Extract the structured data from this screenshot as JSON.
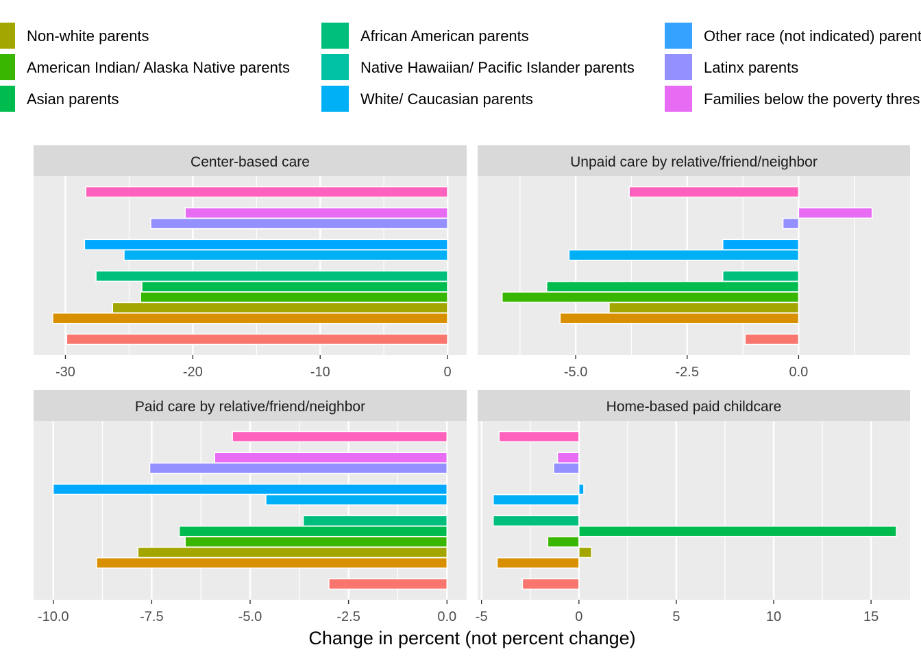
{
  "chart_data": {
    "type": "bar",
    "orientation": "horizontal",
    "xlabel": "Change in percent (not percent change)",
    "legend_position": "top",
    "grid": true,
    "series": [
      {
        "name": "Non-white parents",
        "color": "#A3A500"
      },
      {
        "name": "American Indian/ Alaska Native parents",
        "color": "#39B600"
      },
      {
        "name": "Asian parents",
        "color": "#00BB4E"
      },
      {
        "name": "African American parents",
        "color": "#00BF7D"
      },
      {
        "name": "Native Hawaiian/ Pacific Islander parents",
        "color": "#00C1A3"
      },
      {
        "name": "White/ Caucasian parents",
        "color": "#00B0F6"
      },
      {
        "name": "Other race (not indicated) parents",
        "color": "#35A2FF"
      },
      {
        "name": "Latinx parents",
        "color": "#9590FF"
      },
      {
        "name": "Families below the poverty threshold",
        "color": "#E76BF3"
      }
    ],
    "bar_colors": [
      "#F8766D",
      "#D89000",
      "#A3A500",
      "#39B600",
      "#00BB4E",
      "#00BF7D",
      "#00B0F6",
      "#00A9FF",
      "#9590FF",
      "#E76BF3",
      "#FF62BC"
    ],
    "bar_slots": [
      0,
      2,
      3,
      4,
      5,
      6,
      8,
      9,
      11,
      12,
      14
    ],
    "panels": [
      {
        "title": "Center-based care",
        "xlim": [
          -32.5,
          1.5
        ],
        "ticks": [
          -30,
          -20,
          -10,
          0
        ],
        "tick_labels": [
          "-30",
          "-20",
          "-10",
          "0"
        ],
        "values": [
          -29.9,
          -31.0,
          -26.3,
          -24.1,
          -24.0,
          -27.6,
          -25.4,
          -28.5,
          -23.3,
          -20.6,
          -28.4
        ]
      },
      {
        "title": "Unpaid care by relative/friend/neighbor",
        "xlim": [
          -7.2,
          2.5
        ],
        "ticks": [
          -5.0,
          -2.5,
          0.0
        ],
        "tick_labels": [
          "-5.0",
          "-2.5",
          "0.0"
        ],
        "values": [
          -1.2,
          -5.35,
          -4.25,
          -6.65,
          -5.65,
          -1.7,
          -5.15,
          -1.7,
          -0.35,
          1.65,
          -3.8
        ]
      },
      {
        "title": "Paid care by relative/friend/neighbor",
        "xlim": [
          -10.5,
          0.5
        ],
        "ticks": [
          -10.0,
          -7.5,
          -5.0,
          -2.5,
          0.0
        ],
        "tick_labels": [
          "-10.0",
          "-7.5",
          "-5.0",
          "-2.5",
          "0.0"
        ],
        "values": [
          -3.0,
          -8.9,
          -7.85,
          -6.65,
          -6.8,
          -3.65,
          -4.6,
          -10.0,
          -7.55,
          -5.9,
          -5.45
        ]
      },
      {
        "title": "Home-based paid childcare",
        "xlim": [
          -5.2,
          17.0
        ],
        "ticks": [
          -5,
          0,
          5,
          10,
          15
        ],
        "tick_labels": [
          "-5",
          "0",
          "5",
          "10",
          "15"
        ],
        "values": [
          -2.9,
          -4.2,
          0.65,
          -1.6,
          16.3,
          -4.4,
          -4.4,
          0.25,
          -1.3,
          -1.1,
          -4.1
        ]
      }
    ]
  }
}
